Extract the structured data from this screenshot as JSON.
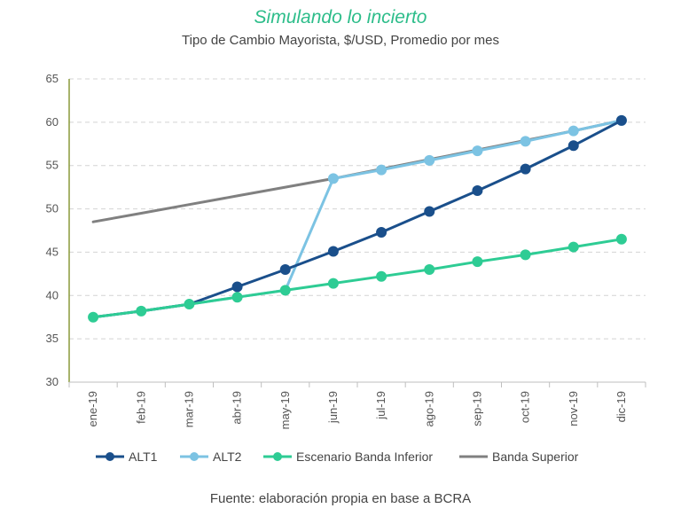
{
  "header": {
    "title": "Simulando lo incierto",
    "subtitle": "Tipo de Cambio Mayorista, $/USD, Promedio por mes"
  },
  "footer": {
    "source": "Fuente: elaboración propia en base a BCRA"
  },
  "chart_data": {
    "type": "line",
    "categories": [
      "ene-19",
      "feb-19",
      "mar-19",
      "abr-19",
      "may-19",
      "jun-19",
      "jul-19",
      "ago-19",
      "sep-19",
      "oct-19",
      "nov-19",
      "dic-19"
    ],
    "ylim": [
      30,
      65
    ],
    "yticks": [
      30,
      35,
      40,
      45,
      50,
      55,
      60,
      65
    ],
    "grid": "horizontal-dashed",
    "legend_position": "bottom",
    "series": [
      {
        "name": "Banda Superior",
        "color": "#808080",
        "markers": false,
        "values": [
          48.5,
          49.5,
          50.5,
          51.5,
          52.5,
          53.5,
          54.6,
          55.7,
          56.8,
          57.9,
          59.0,
          60.2
        ]
      },
      {
        "name": "ALT2",
        "color": "#7cc3e3",
        "markers": true,
        "marker_start": 5,
        "values": [
          37.5,
          38.2,
          39.0,
          39.8,
          40.6,
          53.5,
          54.5,
          55.6,
          56.7,
          57.8,
          59.0,
          60.2
        ]
      },
      {
        "name": "ALT1",
        "color": "#1a4f8b",
        "markers": true,
        "marker_start": 3,
        "values": [
          37.5,
          38.2,
          39.0,
          41.0,
          43.0,
          45.1,
          47.3,
          49.7,
          52.1,
          54.6,
          57.3,
          60.2
        ]
      },
      {
        "name": "Escenario Banda Inferior",
        "color": "#2ecc94",
        "markers": true,
        "marker_start": 0,
        "values": [
          37.5,
          38.2,
          39.0,
          39.8,
          40.6,
          41.4,
          42.2,
          43.0,
          43.9,
          44.7,
          45.6,
          46.5
        ]
      }
    ],
    "legend_order": [
      "ALT1",
      "ALT2",
      "Escenario Banda Inferior",
      "Banda Superior"
    ]
  }
}
